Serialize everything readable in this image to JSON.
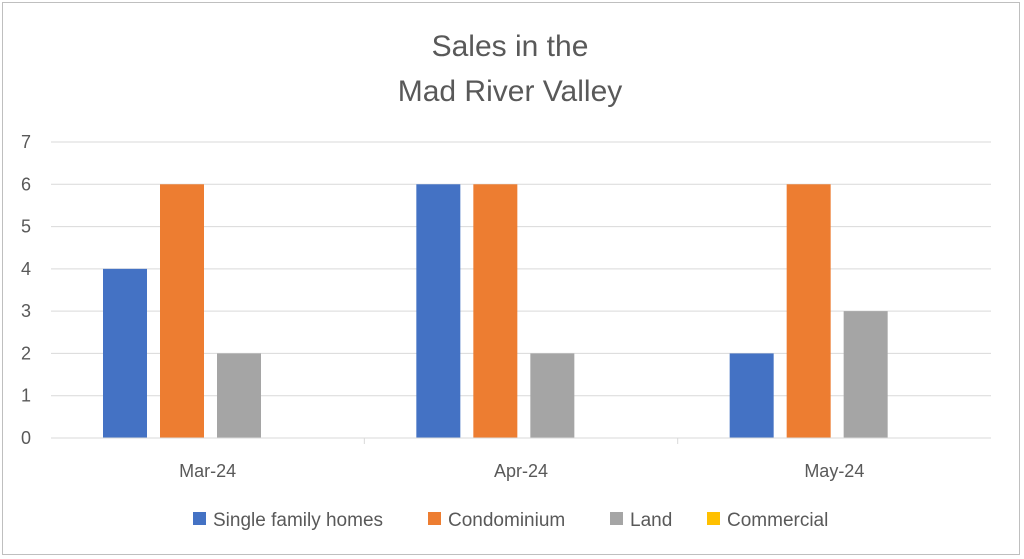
{
  "chart_data": {
    "type": "bar",
    "title_lines": [
      "Sales in the",
      "Mad River Valley"
    ],
    "categories": [
      "Mar-24",
      "Apr-24",
      "May-24"
    ],
    "series": [
      {
        "name": "Single family homes",
        "values": [
          4,
          6,
          2
        ],
        "color": "#4472c4"
      },
      {
        "name": "Condominium",
        "values": [
          6,
          6,
          6
        ],
        "color": "#ed7d31"
      },
      {
        "name": "Land",
        "values": [
          2,
          2,
          3
        ],
        "color": "#a5a5a5"
      },
      {
        "name": "Commercial",
        "values": [
          0,
          0,
          0
        ],
        "color": "#ffc000"
      }
    ],
    "ylim": [
      0,
      7
    ],
    "yticks": [
      "0",
      "1",
      "2",
      "3",
      "4",
      "5",
      "6",
      "7"
    ],
    "grid": true,
    "legend_position": "bottom"
  }
}
